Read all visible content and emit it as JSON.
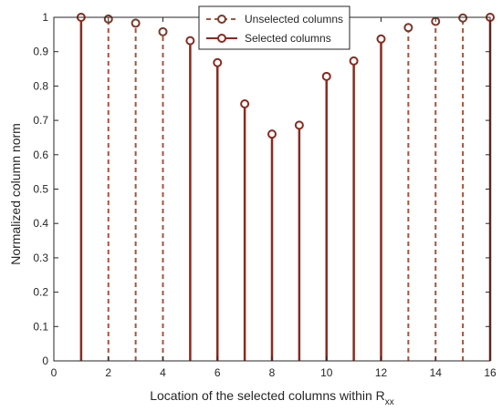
{
  "chart_data": {
    "type": "stem",
    "title": "",
    "xlabel_main": "Location of the selected columns within R",
    "xlabel_sub": "xx",
    "ylabel": "Normalized column norm",
    "xlim": [
      0,
      16
    ],
    "ylim": [
      0,
      1
    ],
    "xticks": [
      "0",
      "2",
      "4",
      "6",
      "8",
      "10",
      "12",
      "14",
      "16"
    ],
    "yticks": [
      "0",
      "0.1",
      "0.2",
      "0.3",
      "0.4",
      "0.5",
      "0.6",
      "0.7",
      "0.8",
      "0.9",
      "1"
    ],
    "grid": false,
    "legend_position": "top-center",
    "series": [
      {
        "name": "Unselected columns",
        "style": "dashed",
        "color": "#a8523c",
        "marker_color": "#7a3a2a",
        "x": [
          2,
          3,
          4,
          13,
          14,
          15
        ],
        "values": [
          0.995,
          0.983,
          0.958,
          0.97,
          0.988,
          0.998
        ]
      },
      {
        "name": "Selected columns",
        "style": "solid",
        "color": "#8b2a1f",
        "marker_color": "#8b2a1f",
        "x": [
          1,
          5,
          6,
          7,
          8,
          9,
          10,
          11,
          12,
          16
        ],
        "values": [
          1.0,
          0.932,
          0.868,
          0.748,
          0.66,
          0.686,
          0.828,
          0.873,
          0.937,
          1.0
        ]
      }
    ]
  }
}
